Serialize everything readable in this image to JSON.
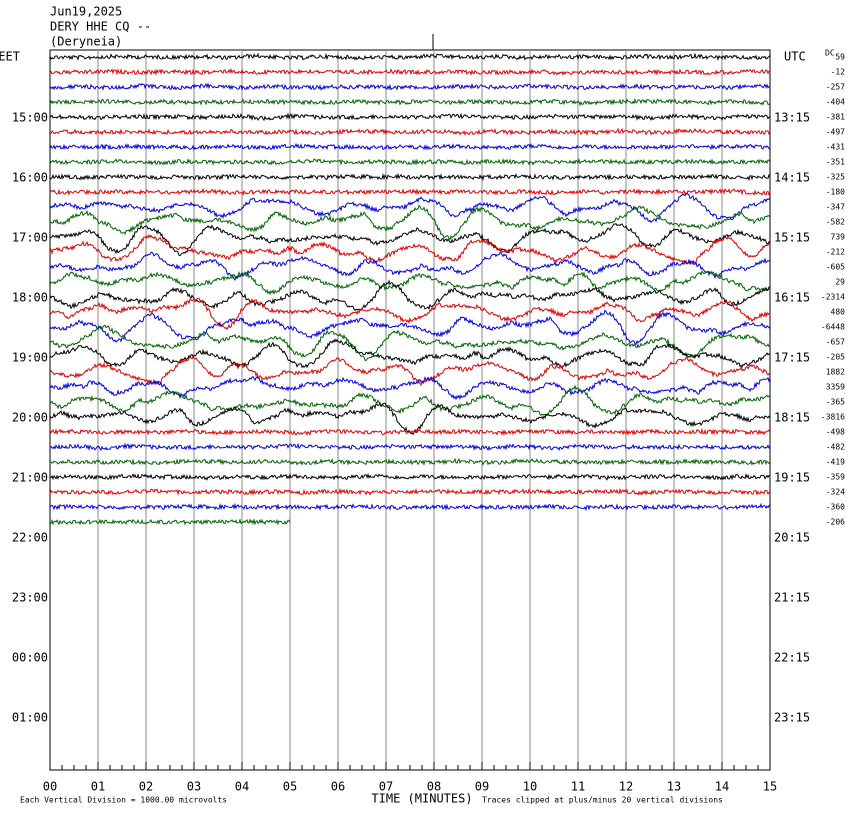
{
  "header": {
    "date": "Jun19,2025",
    "station": "DERY HHE CQ --",
    "location": "(Deryneia)"
  },
  "left_axis": {
    "label": "EET",
    "times": [
      "15:00",
      "16:00",
      "17:00",
      "18:00",
      "19:00",
      "20:00",
      "21:00",
      "22:00",
      "23:00",
      "00:00",
      "01:00"
    ]
  },
  "right_axis": {
    "label": "UTC",
    "times": [
      "13:15",
      "14:15",
      "15:15",
      "16:15",
      "17:15",
      "18:15",
      "19:15",
      "20:15",
      "21:15",
      "22:15",
      "23:15"
    ]
  },
  "dc_label": "DC",
  "offsets": [
    "59",
    "-12",
    "-257",
    "-404",
    "-381",
    "-497",
    "-431",
    "-351",
    "-325",
    "-180",
    "-347",
    "-582",
    "739",
    "-212",
    "-605",
    "29",
    "-2314",
    "480",
    "-6448",
    "-657",
    "-205",
    "1882",
    "3359",
    "-365",
    "-3816",
    "-498",
    "-482",
    "-419",
    "-359",
    "-324",
    "-360",
    "-206"
  ],
  "x_axis": {
    "ticks": [
      "00",
      "01",
      "02",
      "03",
      "04",
      "05",
      "06",
      "07",
      "08",
      "09",
      "10",
      "11",
      "12",
      "13",
      "14",
      "15"
    ],
    "label": "TIME (MINUTES)"
  },
  "footer": {
    "scale_note": "Each Vertical Division = 1000.00 microvolts",
    "clip_note": "Traces clipped at plus/minus 20 vertical divisions"
  },
  "trace_colors": [
    "#000000",
    "#e00000",
    "#0000e0",
    "#006400"
  ]
}
